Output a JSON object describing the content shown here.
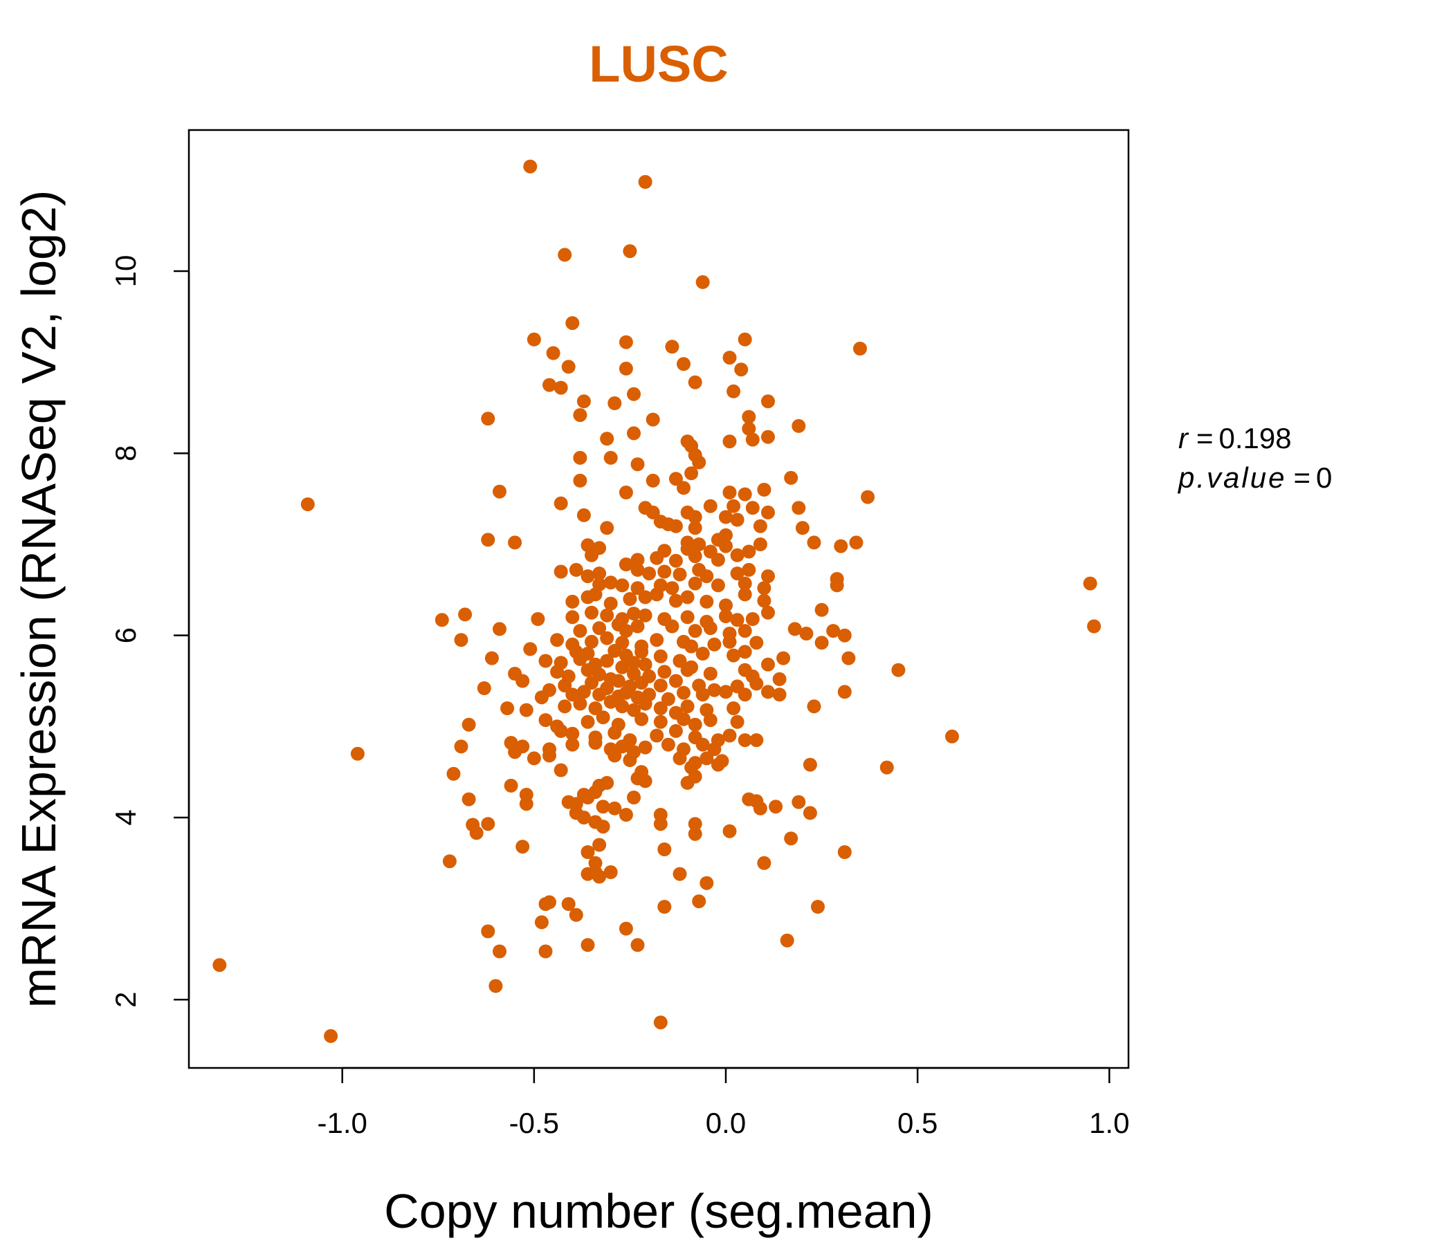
{
  "chart_data": {
    "type": "scatter",
    "title": "LUSC",
    "xlabel": "Copy number (seg.mean)",
    "ylabel": "mRNA Expression (RNASeq V2, log2)",
    "xlim": [
      -1.4,
      1.05
    ],
    "ylim": [
      1.25,
      11.55
    ],
    "xticks": [
      -1.0,
      -0.5,
      0.0,
      0.5,
      1.0
    ],
    "xtick_labels": [
      "-1.0",
      "-0.5",
      "0.0",
      "0.5",
      "1.0"
    ],
    "yticks": [
      2,
      4,
      6,
      8,
      10
    ],
    "ytick_labels": [
      "2",
      "4",
      "6",
      "8",
      "10"
    ],
    "grid": false,
    "stats": {
      "r_label": "r",
      "r_value": "0.198",
      "p_label": "p.value",
      "p_value": "0"
    },
    "colors": {
      "title": "#D95F02",
      "points": "#D95F02"
    },
    "points": [
      [
        -0.51,
        11.15
      ],
      [
        -0.21,
        10.98
      ],
      [
        -0.25,
        10.22
      ],
      [
        -0.42,
        10.18
      ],
      [
        -0.06,
        9.88
      ],
      [
        -0.4,
        9.43
      ],
      [
        -0.5,
        9.25
      ],
      [
        -0.26,
        9.22
      ],
      [
        0.05,
        9.25
      ],
      [
        0.35,
        9.15
      ],
      [
        -0.45,
        9.1
      ],
      [
        -0.14,
        9.17
      ],
      [
        -0.41,
        8.95
      ],
      [
        -0.26,
        8.93
      ],
      [
        -0.11,
        8.98
      ],
      [
        0.01,
        9.05
      ],
      [
        0.04,
        8.92
      ],
      [
        -0.08,
        8.78
      ],
      [
        -0.46,
        8.75
      ],
      [
        -0.43,
        8.72
      ],
      [
        -0.24,
        8.65
      ],
      [
        0.02,
        8.68
      ],
      [
        -0.37,
        8.57
      ],
      [
        -0.29,
        8.55
      ],
      [
        0.11,
        8.57
      ],
      [
        -0.38,
        8.42
      ],
      [
        -0.62,
        8.38
      ],
      [
        -0.19,
        8.37
      ],
      [
        0.06,
        8.4
      ],
      [
        0.06,
        8.27
      ],
      [
        0.19,
        8.3
      ],
      [
        -0.31,
        8.16
      ],
      [
        -0.24,
        8.22
      ],
      [
        -0.1,
        8.13
      ],
      [
        0.01,
        8.13
      ],
      [
        -0.09,
        8.08
      ],
      [
        0.11,
        8.18
      ],
      [
        0.07,
        8.15
      ],
      [
        -0.38,
        7.95
      ],
      [
        -0.3,
        7.95
      ],
      [
        -0.23,
        7.88
      ],
      [
        -0.08,
        7.98
      ],
      [
        -0.07,
        7.9
      ],
      [
        -0.09,
        7.78
      ],
      [
        -0.38,
        7.7
      ],
      [
        -0.19,
        7.7
      ],
      [
        -0.13,
        7.72
      ],
      [
        0.17,
        7.73
      ],
      [
        -0.59,
        7.58
      ],
      [
        -0.26,
        7.57
      ],
      [
        -0.11,
        7.62
      ],
      [
        0.01,
        7.57
      ],
      [
        0.05,
        7.55
      ],
      [
        0.1,
        7.6
      ],
      [
        0.37,
        7.52
      ],
      [
        -1.09,
        7.44
      ],
      [
        -0.43,
        7.45
      ],
      [
        -0.21,
        7.4
      ],
      [
        -0.19,
        7.35
      ],
      [
        -0.1,
        7.35
      ],
      [
        -0.04,
        7.42
      ],
      [
        0.02,
        7.42
      ],
      [
        0.07,
        7.4
      ],
      [
        0.11,
        7.35
      ],
      [
        0.19,
        7.4
      ],
      [
        -0.37,
        7.32
      ],
      [
        -0.08,
        7.3
      ],
      [
        0.0,
        7.3
      ],
      [
        -0.17,
        7.25
      ],
      [
        -0.15,
        7.22
      ],
      [
        -0.13,
        7.2
      ],
      [
        0.03,
        7.27
      ],
      [
        -0.31,
        7.18
      ],
      [
        -0.08,
        7.18
      ],
      [
        0.09,
        7.2
      ],
      [
        0.2,
        7.18
      ],
      [
        -0.02,
        7.05
      ],
      [
        0.0,
        7.1
      ],
      [
        -0.62,
        7.05
      ],
      [
        -0.55,
        7.02
      ],
      [
        -0.36,
        6.99
      ],
      [
        -0.33,
        6.96
      ],
      [
        -0.1,
        7.02
      ],
      [
        -0.07,
        7.0
      ],
      [
        -0.16,
        6.93
      ],
      [
        -0.1,
        6.95
      ],
      [
        -0.04,
        6.92
      ],
      [
        0.0,
        6.98
      ],
      [
        0.06,
        6.92
      ],
      [
        0.09,
        7.0
      ],
      [
        0.23,
        7.02
      ],
      [
        0.3,
        6.98
      ],
      [
        0.34,
        7.02
      ],
      [
        -0.35,
        6.88
      ],
      [
        -0.26,
        6.78
      ],
      [
        -0.23,
        6.83
      ],
      [
        -0.18,
        6.85
      ],
      [
        -0.13,
        6.82
      ],
      [
        -0.08,
        6.87
      ],
      [
        -0.02,
        6.83
      ],
      [
        0.03,
        6.88
      ],
      [
        -0.43,
        6.7
      ],
      [
        -0.39,
        6.72
      ],
      [
        -0.36,
        6.65
      ],
      [
        -0.33,
        6.68
      ],
      [
        -0.23,
        6.72
      ],
      [
        -0.2,
        6.68
      ],
      [
        -0.16,
        6.7
      ],
      [
        -0.12,
        6.67
      ],
      [
        -0.07,
        6.72
      ],
      [
        -0.05,
        6.65
      ],
      [
        0.03,
        6.68
      ],
      [
        0.06,
        6.72
      ],
      [
        0.11,
        6.65
      ],
      [
        0.29,
        6.62
      ],
      [
        -0.33,
        6.56
      ],
      [
        -0.3,
        6.58
      ],
      [
        -0.27,
        6.55
      ],
      [
        -0.23,
        6.52
      ],
      [
        -0.17,
        6.55
      ],
      [
        -0.14,
        6.52
      ],
      [
        -0.08,
        6.57
      ],
      [
        -0.02,
        6.55
      ],
      [
        0.05,
        6.57
      ],
      [
        0.1,
        6.52
      ],
      [
        0.29,
        6.55
      ],
      [
        0.95,
        6.57
      ],
      [
        -0.4,
        6.37
      ],
      [
        -0.36,
        6.42
      ],
      [
        -0.34,
        6.45
      ],
      [
        -0.3,
        6.35
      ],
      [
        -0.25,
        6.4
      ],
      [
        -0.21,
        6.42
      ],
      [
        -0.18,
        6.45
      ],
      [
        -0.13,
        6.38
      ],
      [
        -0.1,
        6.42
      ],
      [
        -0.05,
        6.37
      ],
      [
        0.0,
        6.33
      ],
      [
        0.05,
        6.45
      ],
      [
        0.1,
        6.38
      ],
      [
        0.25,
        6.28
      ],
      [
        -0.74,
        6.17
      ],
      [
        -0.68,
        6.23
      ],
      [
        -0.4,
        6.2
      ],
      [
        -0.35,
        6.25
      ],
      [
        -0.31,
        6.22
      ],
      [
        -0.27,
        6.18
      ],
      [
        -0.24,
        6.24
      ],
      [
        -0.21,
        6.22
      ],
      [
        -0.16,
        6.18
      ],
      [
        -0.1,
        6.2
      ],
      [
        -0.05,
        6.15
      ],
      [
        0.0,
        6.21
      ],
      [
        0.03,
        6.17
      ],
      [
        0.07,
        6.18
      ],
      [
        0.11,
        6.25
      ],
      [
        -0.49,
        6.18
      ],
      [
        -0.59,
        6.07
      ],
      [
        -0.38,
        6.05
      ],
      [
        -0.33,
        6.08
      ],
      [
        -0.28,
        6.12
      ],
      [
        -0.26,
        6.05
      ],
      [
        -0.23,
        6.1
      ],
      [
        -0.14,
        6.1
      ],
      [
        -0.08,
        6.05
      ],
      [
        -0.04,
        6.08
      ],
      [
        0.01,
        6.02
      ],
      [
        0.05,
        6.05
      ],
      [
        0.18,
        6.07
      ],
      [
        0.21,
        6.02
      ],
      [
        0.28,
        6.05
      ],
      [
        0.31,
        6.0
      ],
      [
        0.96,
        6.1
      ],
      [
        -0.69,
        5.95
      ],
      [
        -0.44,
        5.95
      ],
      [
        -0.4,
        5.9
      ],
      [
        -0.35,
        5.93
      ],
      [
        -0.31,
        5.97
      ],
      [
        -0.27,
        5.92
      ],
      [
        -0.22,
        5.88
      ],
      [
        -0.18,
        5.95
      ],
      [
        -0.11,
        5.93
      ],
      [
        -0.09,
        5.88
      ],
      [
        -0.03,
        5.9
      ],
      [
        0.01,
        5.93
      ],
      [
        0.08,
        5.92
      ],
      [
        0.25,
        5.92
      ],
      [
        -0.51,
        5.85
      ],
      [
        -0.39,
        5.82
      ],
      [
        -0.36,
        5.8
      ],
      [
        -0.29,
        5.83
      ],
      [
        -0.26,
        5.78
      ],
      [
        -0.22,
        5.82
      ],
      [
        -0.17,
        5.77
      ],
      [
        -0.06,
        5.8
      ],
      [
        0.02,
        5.78
      ],
      [
        0.05,
        5.82
      ],
      [
        0.15,
        5.75
      ],
      [
        -0.61,
        5.75
      ],
      [
        -0.47,
        5.72
      ],
      [
        -0.43,
        5.7
      ],
      [
        -0.38,
        5.74
      ],
      [
        -0.34,
        5.68
      ],
      [
        -0.31,
        5.72
      ],
      [
        -0.27,
        5.65
      ],
      [
        -0.24,
        5.7
      ],
      [
        -0.21,
        5.68
      ],
      [
        -0.12,
        5.72
      ],
      [
        -0.09,
        5.65
      ],
      [
        0.11,
        5.68
      ],
      [
        0.32,
        5.75
      ],
      [
        -0.55,
        5.58
      ],
      [
        -0.44,
        5.6
      ],
      [
        -0.41,
        5.55
      ],
      [
        -0.36,
        5.62
      ],
      [
        -0.33,
        5.57
      ],
      [
        -0.3,
        5.52
      ],
      [
        -0.24,
        5.58
      ],
      [
        -0.2,
        5.55
      ],
      [
        -0.16,
        5.6
      ],
      [
        -0.1,
        5.62
      ],
      [
        -0.04,
        5.58
      ],
      [
        0.05,
        5.62
      ],
      [
        0.07,
        5.55
      ],
      [
        0.14,
        5.52
      ],
      [
        0.45,
        5.62
      ],
      [
        -0.53,
        5.5
      ],
      [
        -0.42,
        5.45
      ],
      [
        -0.35,
        5.48
      ],
      [
        -0.31,
        5.42
      ],
      [
        -0.28,
        5.5
      ],
      [
        -0.25,
        5.44
      ],
      [
        -0.22,
        5.48
      ],
      [
        -0.17,
        5.45
      ],
      [
        -0.13,
        5.5
      ],
      [
        -0.07,
        5.45
      ],
      [
        -0.03,
        5.4
      ],
      [
        0.03,
        5.44
      ],
      [
        0.08,
        5.47
      ],
      [
        0.11,
        5.38
      ],
      [
        0.14,
        5.35
      ],
      [
        0.31,
        5.38
      ],
      [
        -0.63,
        5.42
      ],
      [
        -0.46,
        5.4
      ],
      [
        -0.4,
        5.35
      ],
      [
        -0.37,
        5.38
      ],
      [
        -0.33,
        5.35
      ],
      [
        -0.28,
        5.33
      ],
      [
        -0.26,
        5.37
      ],
      [
        -0.23,
        5.32
      ],
      [
        -0.2,
        5.35
      ],
      [
        -0.15,
        5.3
      ],
      [
        -0.11,
        5.37
      ],
      [
        -0.06,
        5.35
      ],
      [
        0.0,
        5.38
      ],
      [
        0.05,
        5.35
      ],
      [
        -0.48,
        5.32
      ],
      [
        -0.57,
        5.2
      ],
      [
        -0.52,
        5.18
      ],
      [
        -0.42,
        5.22
      ],
      [
        -0.38,
        5.25
      ],
      [
        -0.34,
        5.2
      ],
      [
        -0.3,
        5.27
      ],
      [
        -0.27,
        5.22
      ],
      [
        -0.24,
        5.18
      ],
      [
        -0.21,
        5.25
      ],
      [
        -0.17,
        5.2
      ],
      [
        -0.13,
        5.15
      ],
      [
        -0.1,
        5.22
      ],
      [
        -0.05,
        5.18
      ],
      [
        0.02,
        5.2
      ],
      [
        0.23,
        5.22
      ],
      [
        -0.67,
        5.02
      ],
      [
        -0.47,
        5.07
      ],
      [
        -0.44,
        5.0
      ],
      [
        -0.36,
        5.05
      ],
      [
        -0.32,
        5.1
      ],
      [
        -0.28,
        5.02
      ],
      [
        -0.22,
        5.08
      ],
      [
        -0.17,
        5.05
      ],
      [
        -0.11,
        5.08
      ],
      [
        -0.08,
        5.02
      ],
      [
        -0.04,
        5.07
      ],
      [
        0.03,
        5.05
      ],
      [
        -0.43,
        4.95
      ],
      [
        -0.4,
        4.92
      ],
      [
        -0.34,
        4.88
      ],
      [
        -0.29,
        4.93
      ],
      [
        -0.25,
        4.85
      ],
      [
        -0.18,
        4.9
      ],
      [
        -0.13,
        4.95
      ],
      [
        -0.08,
        4.88
      ],
      [
        -0.02,
        4.85
      ],
      [
        0.01,
        4.9
      ],
      [
        0.05,
        4.85
      ],
      [
        0.08,
        4.85
      ],
      [
        0.59,
        4.89
      ],
      [
        -0.69,
        4.78
      ],
      [
        -0.56,
        4.82
      ],
      [
        -0.53,
        4.78
      ],
      [
        -0.46,
        4.75
      ],
      [
        -0.4,
        4.8
      ],
      [
        -0.34,
        4.82
      ],
      [
        -0.3,
        4.75
      ],
      [
        -0.27,
        4.78
      ],
      [
        -0.24,
        4.72
      ],
      [
        -0.21,
        4.77
      ],
      [
        -0.15,
        4.8
      ],
      [
        -0.11,
        4.75
      ],
      [
        -0.06,
        4.8
      ],
      [
        -0.03,
        4.75
      ],
      [
        -0.96,
        4.7
      ],
      [
        -0.55,
        4.72
      ],
      [
        -0.5,
        4.65
      ],
      [
        -0.46,
        4.68
      ],
      [
        -0.29,
        4.68
      ],
      [
        -0.25,
        4.63
      ],
      [
        -0.12,
        4.65
      ],
      [
        -0.08,
        4.6
      ],
      [
        -0.05,
        4.65
      ],
      [
        -0.01,
        4.62
      ],
      [
        -0.43,
        4.52
      ],
      [
        -0.22,
        4.5
      ],
      [
        -0.09,
        4.55
      ],
      [
        -0.02,
        4.58
      ],
      [
        0.22,
        4.58
      ],
      [
        0.42,
        4.55
      ],
      [
        -0.71,
        4.48
      ],
      [
        -0.23,
        4.43
      ],
      [
        -0.21,
        4.4
      ],
      [
        -0.31,
        4.38
      ],
      [
        -0.33,
        4.35
      ],
      [
        -0.1,
        4.38
      ],
      [
        -0.08,
        4.45
      ],
      [
        -0.56,
        4.35
      ],
      [
        -0.37,
        4.25
      ],
      [
        -0.36,
        4.22
      ],
      [
        -0.34,
        4.28
      ],
      [
        -0.24,
        4.22
      ],
      [
        -0.52,
        4.25
      ],
      [
        -0.67,
        4.2
      ],
      [
        -0.41,
        4.17
      ],
      [
        -0.39,
        4.15
      ],
      [
        -0.52,
        4.15
      ],
      [
        -0.32,
        4.12
      ],
      [
        -0.29,
        4.1
      ],
      [
        0.06,
        4.2
      ],
      [
        0.08,
        4.18
      ],
      [
        0.09,
        4.1
      ],
      [
        0.13,
        4.12
      ],
      [
        0.19,
        4.17
      ],
      [
        0.22,
        4.05
      ],
      [
        -0.39,
        4.05
      ],
      [
        -0.37,
        4.0
      ],
      [
        -0.34,
        3.95
      ],
      [
        -0.32,
        3.9
      ],
      [
        -0.26,
        4.03
      ],
      [
        -0.17,
        4.03
      ],
      [
        -0.17,
        3.93
      ],
      [
        -0.66,
        3.92
      ],
      [
        -0.62,
        3.93
      ],
      [
        -0.08,
        3.93
      ],
      [
        -0.65,
        3.83
      ],
      [
        -0.08,
        3.82
      ],
      [
        0.01,
        3.85
      ],
      [
        0.17,
        3.77
      ],
      [
        -0.53,
        3.68
      ],
      [
        -0.33,
        3.7
      ],
      [
        -0.36,
        3.62
      ],
      [
        -0.16,
        3.65
      ],
      [
        0.31,
        3.62
      ],
      [
        -0.72,
        3.52
      ],
      [
        -0.34,
        3.5
      ],
      [
        0.1,
        3.5
      ],
      [
        -0.34,
        3.4
      ],
      [
        -0.36,
        3.38
      ],
      [
        -0.3,
        3.4
      ],
      [
        -0.12,
        3.38
      ],
      [
        -0.33,
        3.35
      ],
      [
        -0.05,
        3.28
      ],
      [
        -0.47,
        3.05
      ],
      [
        -0.46,
        3.07
      ],
      [
        -0.41,
        3.05
      ],
      [
        -0.07,
        3.08
      ],
      [
        -0.16,
        3.02
      ],
      [
        0.24,
        3.02
      ],
      [
        -0.39,
        2.93
      ],
      [
        -0.48,
        2.85
      ],
      [
        -0.62,
        2.75
      ],
      [
        -0.26,
        2.78
      ],
      [
        0.16,
        2.65
      ],
      [
        -0.36,
        2.6
      ],
      [
        -0.23,
        2.6
      ],
      [
        -0.59,
        2.53
      ],
      [
        -0.47,
        2.53
      ],
      [
        -0.6,
        2.15
      ],
      [
        -1.32,
        2.38
      ],
      [
        -0.17,
        1.75
      ],
      [
        -1.03,
        1.6
      ]
    ]
  }
}
